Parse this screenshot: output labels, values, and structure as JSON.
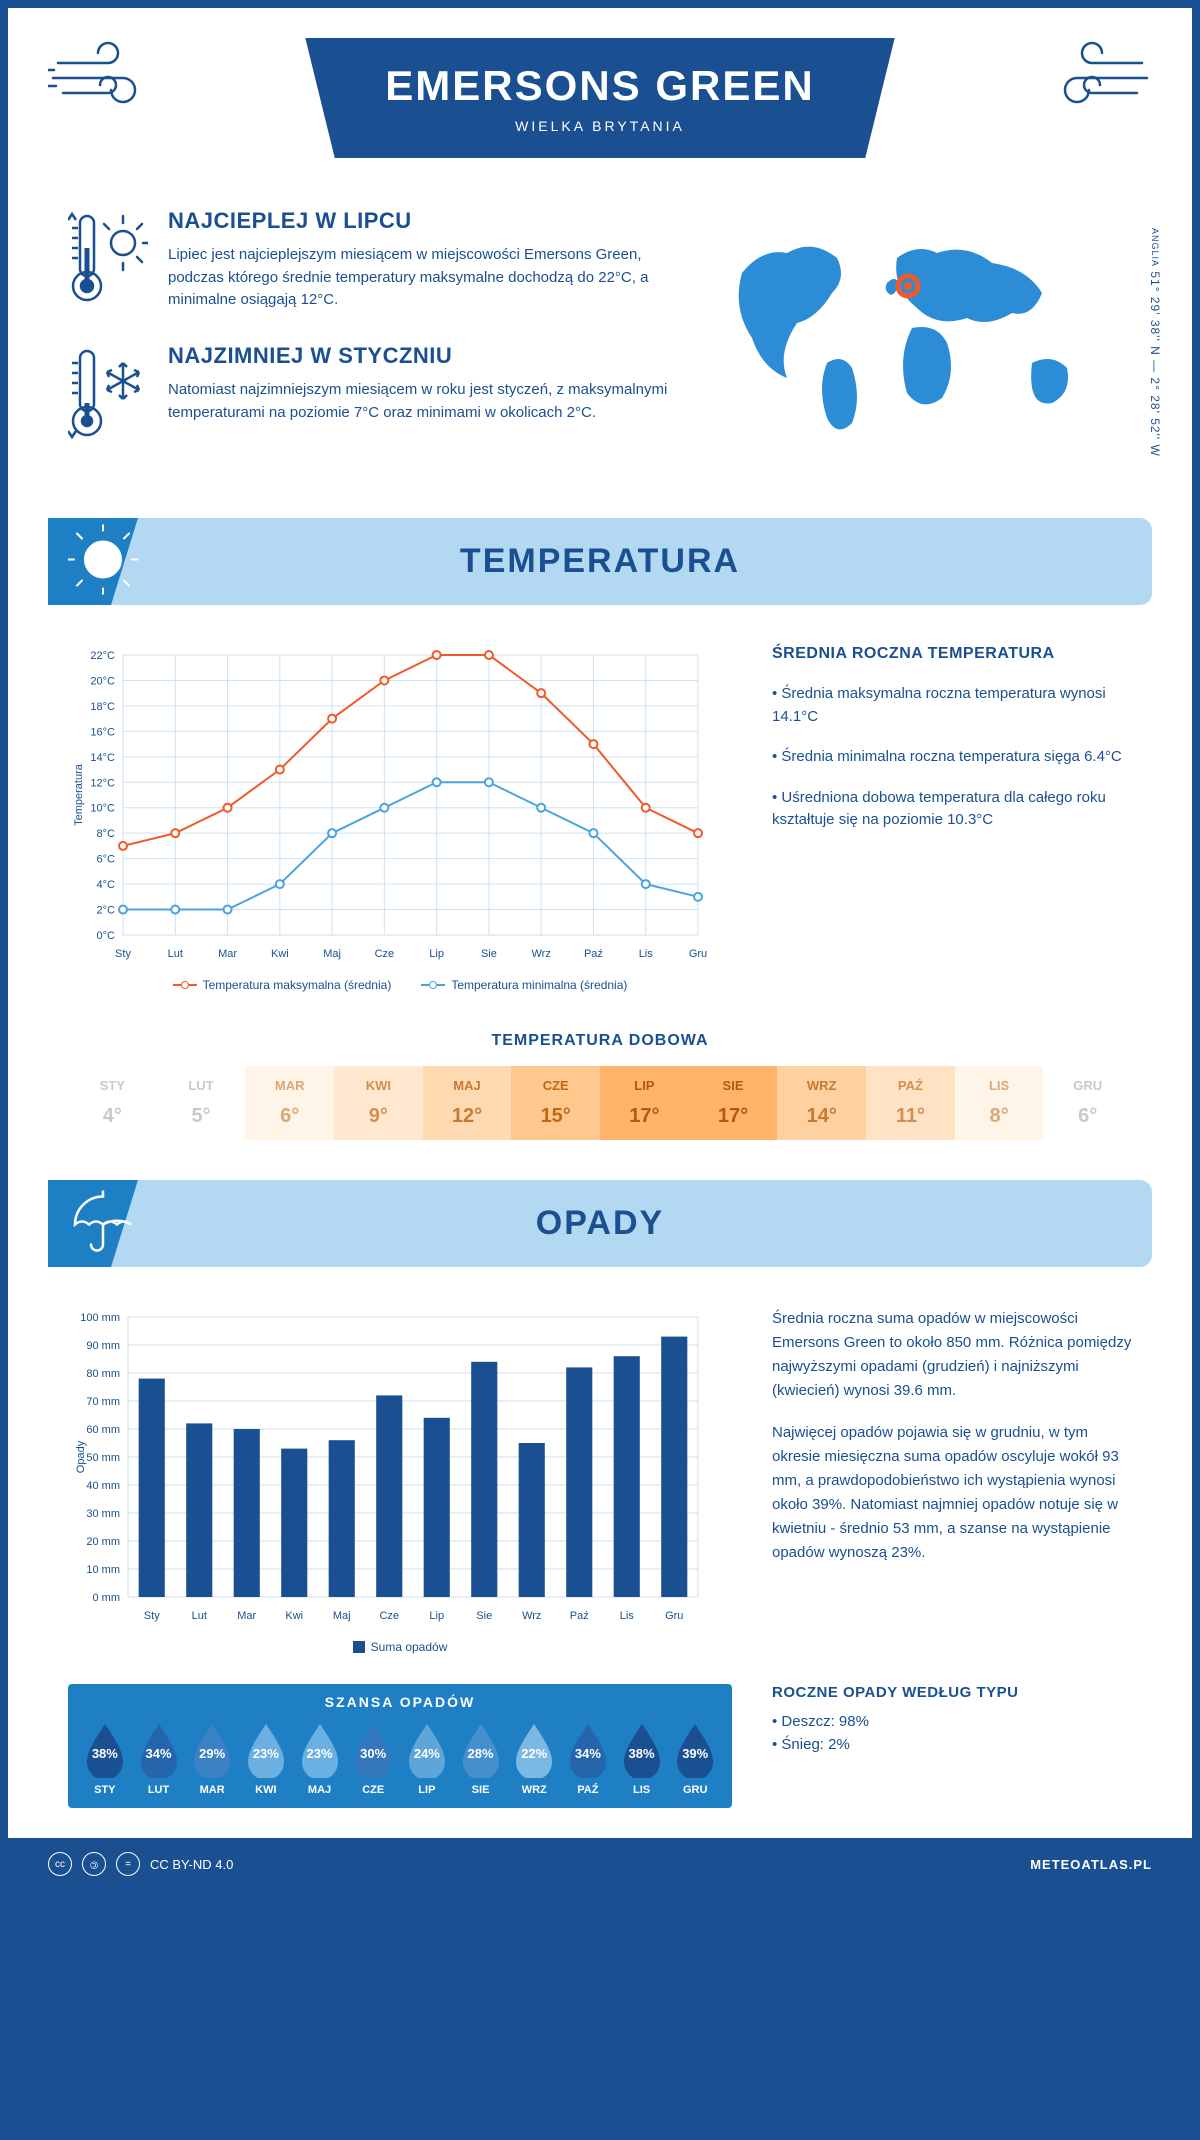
{
  "header": {
    "title": "EMERSONS GREEN",
    "subtitle": "WIELKA BRYTANIA"
  },
  "coords": {
    "text": "51° 29' 38'' N — 2° 28' 52'' W",
    "region": "ANGLIA"
  },
  "colors": {
    "primary": "#1a4f91",
    "secondary": "#1f7fc4",
    "banner_bg": "#b3d9f2",
    "max_line": "#f05a28",
    "min_line": "#4aa3df",
    "bar": "#1a4f91",
    "grid": "#cfe2f3"
  },
  "facts": {
    "warm": {
      "title": "NAJCIEPLEJ W LIPCU",
      "text": "Lipiec jest najcieplejszym miesiącem w miejscowości Emersons Green, podczas którego średnie temperatury maksymalne dochodzą do 22°C, a minimalne osiągają 12°C."
    },
    "cold": {
      "title": "NAJZIMNIEJ W STYCZNIU",
      "text": "Natomiast najzimniejszym miesiącem w roku jest styczeń, z maksymalnymi temperaturami na poziomie 7°C oraz minimami w okolicach 2°C."
    }
  },
  "sections": {
    "temp": "TEMPERATURA",
    "precip": "OPADY"
  },
  "temp_chart": {
    "type": "line",
    "months": [
      "Sty",
      "Lut",
      "Mar",
      "Kwi",
      "Maj",
      "Cze",
      "Lip",
      "Sie",
      "Wrz",
      "Paź",
      "Lis",
      "Gru"
    ],
    "max": [
      7,
      8,
      10,
      13,
      17,
      20,
      22,
      22,
      19,
      15,
      10,
      8
    ],
    "min": [
      2,
      2,
      2,
      4,
      8,
      10,
      12,
      12,
      10,
      8,
      4,
      3
    ],
    "ylim": [
      0,
      22
    ],
    "ytick_step": 2,
    "y_axis_label": "Temperatura",
    "max_color": "#f05a28",
    "min_color": "#4aa3df",
    "legend_max": "Temperatura maksymalna (średnia)",
    "legend_min": "Temperatura minimalna (średnia)"
  },
  "temp_info": {
    "title": "ŚREDNIA ROCZNA TEMPERATURA",
    "items": [
      "• Średnia maksymalna roczna temperatura wynosi 14.1°C",
      "• Średnia minimalna roczna temperatura sięga 6.4°C",
      "• Uśredniona dobowa temperatura dla całego roku kształtuje się na poziomie 10.3°C"
    ]
  },
  "daily_temp": {
    "title": "TEMPERATURA DOBOWA",
    "months": [
      "STY",
      "LUT",
      "MAR",
      "KWI",
      "MAJ",
      "CZE",
      "LIP",
      "SIE",
      "WRZ",
      "PAŹ",
      "LIS",
      "GRU"
    ],
    "values": [
      "4°",
      "5°",
      "6°",
      "9°",
      "12°",
      "15°",
      "17°",
      "17°",
      "14°",
      "11°",
      "8°",
      "6°"
    ],
    "cell_colors": [
      "#ffffff",
      "#ffffff",
      "#fff4e8",
      "#ffe8cf",
      "#ffd9b0",
      "#ffc88f",
      "#ffb36b",
      "#ffb36b",
      "#ffd0a0",
      "#ffe3c4",
      "#fff4e8",
      "#ffffff"
    ],
    "text_colors": [
      "#c9c9c9",
      "#c9c9c9",
      "#d9a878",
      "#d19050",
      "#c87a30",
      "#bf6818",
      "#b55a08",
      "#b55a08",
      "#c87a30",
      "#d19050",
      "#d9a878",
      "#c9c9c9"
    ]
  },
  "precip_chart": {
    "type": "bar",
    "months": [
      "Sty",
      "Lut",
      "Mar",
      "Kwi",
      "Maj",
      "Cze",
      "Lip",
      "Sie",
      "Wrz",
      "Paź",
      "Lis",
      "Gru"
    ],
    "values": [
      78,
      62,
      60,
      53,
      56,
      72,
      64,
      84,
      55,
      82,
      86,
      93
    ],
    "ylim": [
      0,
      100
    ],
    "ytick_step": 10,
    "y_axis_label": "Opady",
    "bar_color": "#1a4f91",
    "legend": "Suma opadów",
    "y_unit": "mm"
  },
  "precip_info": {
    "para1": "Średnia roczna suma opadów w miejscowości Emersons Green to około 850 mm. Różnica pomiędzy najwyższymi opadami (grudzień) i najniższymi (kwiecień) wynosi 39.6 mm.",
    "para2": "Najwięcej opadów pojawia się w grudniu, w tym okresie miesięczna suma opadów oscyluje wokół 93 mm, a prawdopodobieństwo ich wystąpienia wynosi około 39%. Natomiast najmniej opadów notuje się w kwietniu - średnio 53 mm, a szanse na wystąpienie opadów wynoszą 23%."
  },
  "chance": {
    "title": "SZANSA OPADÓW",
    "months": [
      "STY",
      "LUT",
      "MAR",
      "KWI",
      "MAJ",
      "CZE",
      "LIP",
      "SIE",
      "WRZ",
      "PAŹ",
      "LIS",
      "GRU"
    ],
    "values": [
      "38%",
      "34%",
      "29%",
      "23%",
      "23%",
      "30%",
      "24%",
      "28%",
      "22%",
      "34%",
      "38%",
      "39%"
    ],
    "drop_colors": [
      "#1a4f91",
      "#2465ac",
      "#3b82c4",
      "#6bb0e0",
      "#6bb0e0",
      "#3477bc",
      "#5fa6d8",
      "#4590cc",
      "#7bb8e4",
      "#2465ac",
      "#1a4f91",
      "#1a4f91"
    ]
  },
  "precip_type": {
    "title": "ROCZNE OPADY WEDŁUG TYPU",
    "items": [
      "• Deszcz: 98%",
      "• Śnieg: 2%"
    ]
  },
  "footer": {
    "license": "CC BY-ND 4.0",
    "site": "METEOATLAS.PL"
  }
}
